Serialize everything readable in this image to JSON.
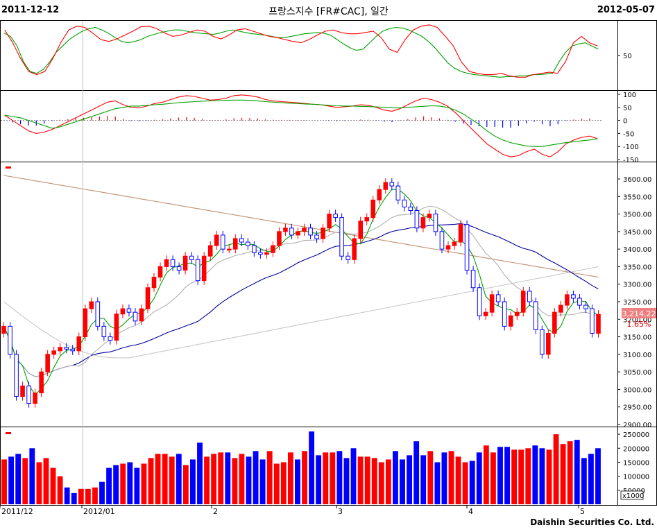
{
  "header": {
    "start_date": "2011-12-12",
    "title": "프랑스지수 [FR#CAC], 일간",
    "end_date": "2012-05-07"
  },
  "footer": {
    "company": "Daishin Securities Co. Ltd."
  },
  "price_label": "3,214.22",
  "change_label": "1.65%",
  "volume_unit": "x1000",
  "x_axis_labels": [
    "2011/12",
    "2012/01",
    "2",
    "3",
    "4",
    "5"
  ],
  "colors": {
    "up": "#ff0000",
    "down": "#0000ff",
    "ma5": "#00a000",
    "ma20": "#b0b0b0",
    "ma60": "#0000a0",
    "ma120": "#c8c8c8",
    "ma200": "#c09070"
  },
  "chart_data": [
    {
      "type": "candlestick",
      "title": "프랑스지수 [FR#CAC], 일간",
      "ylim": [
        2900,
        3650
      ],
      "yticks": [
        2900,
        2950,
        3000,
        3050,
        3100,
        3150,
        3200,
        3250,
        3300,
        3350,
        3400,
        3450,
        3500,
        3550,
        3600
      ],
      "ytick_labels": [
        "2900.00",
        "2950.00",
        "3000.00",
        "3050.00",
        "3100.00",
        "3150.00",
        "3200.00",
        "3250.00",
        "3300.00",
        "3350.00",
        "3400.00",
        "3450.00",
        "3500.00",
        "3550.00",
        "3600.00"
      ],
      "last_price": 3214.22,
      "closes": [
        3180,
        3100,
        2980,
        3010,
        2960,
        2990,
        3050,
        3100,
        3110,
        3120,
        3115,
        3110,
        3150,
        3230,
        3250,
        3180,
        3150,
        3140,
        3215,
        3230,
        3220,
        3195,
        3230,
        3290,
        3320,
        3350,
        3370,
        3350,
        3340,
        3380,
        3370,
        3310,
        3380,
        3410,
        3440,
        3400,
        3400,
        3430,
        3420,
        3410,
        3390,
        3385,
        3390,
        3410,
        3450,
        3460,
        3440,
        3450,
        3460,
        3440,
        3430,
        3460,
        3500,
        3490,
        3380,
        3370,
        3430,
        3480,
        3490,
        3540,
        3570,
        3590,
        3580,
        3540,
        3520,
        3510,
        3460,
        3490,
        3500,
        3450,
        3400,
        3410,
        3420,
        3470,
        3340,
        3290,
        3210,
        3220,
        3270,
        3250,
        3180,
        3210,
        3220,
        3280,
        3250,
        3170,
        3100,
        3160,
        3220,
        3240,
        3270,
        3260,
        3240,
        3230,
        3160,
        3214
      ]
    },
    {
      "type": "line",
      "title": "",
      "ylim": [
        0,
        100
      ],
      "yticks": [
        50
      ],
      "series": [
        {
          "values": [
            85,
            80,
            65,
            40,
            25,
            22,
            28,
            40,
            55,
            65,
            75,
            82,
            88,
            92,
            94,
            90,
            85,
            78,
            72,
            70,
            72,
            75,
            80,
            83,
            86,
            88,
            90,
            90,
            88,
            86,
            85,
            84,
            83,
            85,
            88,
            90,
            88,
            86,
            84,
            83,
            82,
            80,
            78,
            78,
            80,
            82,
            84,
            85,
            86,
            85,
            82,
            75,
            68,
            62,
            58,
            60,
            70,
            80,
            88,
            92,
            94,
            93,
            90,
            85,
            80,
            72,
            62,
            50,
            38,
            30,
            25,
            22,
            20,
            19,
            18,
            17,
            16,
            17,
            17,
            18,
            18,
            20,
            20,
            21,
            22,
            40,
            55,
            65,
            68,
            70,
            65,
            60
          ]
        },
        {
          "values": [
            90,
            70,
            45,
            25,
            20,
            25,
            45,
            70,
            90,
            96,
            94,
            85,
            75,
            72,
            76,
            82,
            88,
            95,
            96,
            92,
            85,
            80,
            82,
            86,
            90,
            88,
            80,
            76,
            82,
            90,
            92,
            88,
            84,
            80,
            78,
            75,
            72,
            70,
            75,
            82,
            88,
            90,
            86,
            84,
            84,
            86,
            88,
            78,
            60,
            55,
            75,
            90,
            96,
            98,
            94,
            80,
            65,
            40,
            25,
            22,
            20,
            20,
            22,
            18,
            16,
            16,
            20,
            22,
            24,
            22,
            40,
            70,
            80,
            70,
            65
          ]
        }
      ]
    },
    {
      "type": "line",
      "title": "",
      "ylim": [
        -150,
        100
      ],
      "yticks": [
        100,
        50,
        0,
        -50,
        -100,
        -150
      ],
      "series": [
        {
          "values": [
            20,
            0,
            -20,
            -40,
            -50,
            -45,
            -35,
            -20,
            -5,
            10,
            25,
            40,
            55,
            70,
            75,
            60,
            50,
            48,
            55,
            65,
            70,
            80,
            90,
            95,
            92,
            85,
            78,
            80,
            85,
            95,
            98,
            95,
            90,
            80,
            75,
            72,
            70,
            68,
            65,
            62,
            60,
            55,
            50,
            52,
            55,
            60,
            58,
            50,
            40,
            35,
            45,
            60,
            75,
            85,
            80,
            70,
            55,
            30,
            0,
            -30,
            -60,
            -90,
            -110,
            -130,
            -140,
            -135,
            -120,
            -110,
            -130,
            -140,
            -120,
            -90,
            -75,
            -65,
            -60,
            -70
          ]
        },
        {
          "values": [
            20,
            15,
            10,
            0,
            -10,
            -20,
            -30,
            -25,
            -15,
            -5,
            5,
            15,
            25,
            35,
            45,
            50,
            55,
            55,
            58,
            60,
            62,
            65,
            68,
            70,
            72,
            74,
            75,
            76,
            77,
            78,
            78,
            77,
            75,
            72,
            70,
            68,
            66,
            65,
            63,
            62,
            60,
            58,
            56,
            55,
            55,
            54,
            53,
            52,
            50,
            48,
            48,
            50,
            52,
            54,
            56,
            55,
            50,
            40,
            25,
            5,
            -15,
            -40,
            -60,
            -75,
            -85,
            -92,
            -98,
            -100,
            -100,
            -95,
            -90,
            -85,
            -82,
            -78,
            -75,
            -70
          ]
        }
      ]
    },
    {
      "type": "bar",
      "title": "",
      "ylabel": "x1000",
      "ylim": [
        0,
        270000
      ],
      "yticks": [
        50000,
        100000,
        150000,
        200000,
        250000
      ],
      "ytick_labels": [
        "50000",
        "100000",
        "150000",
        "200000",
        "250000"
      ],
      "values": [
        160000,
        170000,
        180000,
        165000,
        200000,
        150000,
        165000,
        130000,
        100000,
        60000,
        40000,
        55000,
        55000,
        60000,
        80000,
        130000,
        140000,
        145000,
        150000,
        130000,
        145000,
        165000,
        180000,
        180000,
        170000,
        180000,
        140000,
        160000,
        220000,
        170000,
        180000,
        185000,
        185000,
        165000,
        180000,
        170000,
        190000,
        160000,
        190000,
        145000,
        150000,
        185000,
        160000,
        190000,
        260000,
        175000,
        185000,
        185000,
        190000,
        165000,
        200000,
        170000,
        170000,
        165000,
        150000,
        160000,
        190000,
        160000,
        175000,
        225000,
        175000,
        190000,
        150000,
        185000,
        190000,
        170000,
        150000,
        155000,
        185000,
        210000,
        185000,
        205000,
        205000,
        195000,
        195000,
        200000,
        210000,
        200000,
        195000,
        250000,
        215000,
        225000,
        230000,
        165000,
        180000,
        200000
      ]
    }
  ]
}
